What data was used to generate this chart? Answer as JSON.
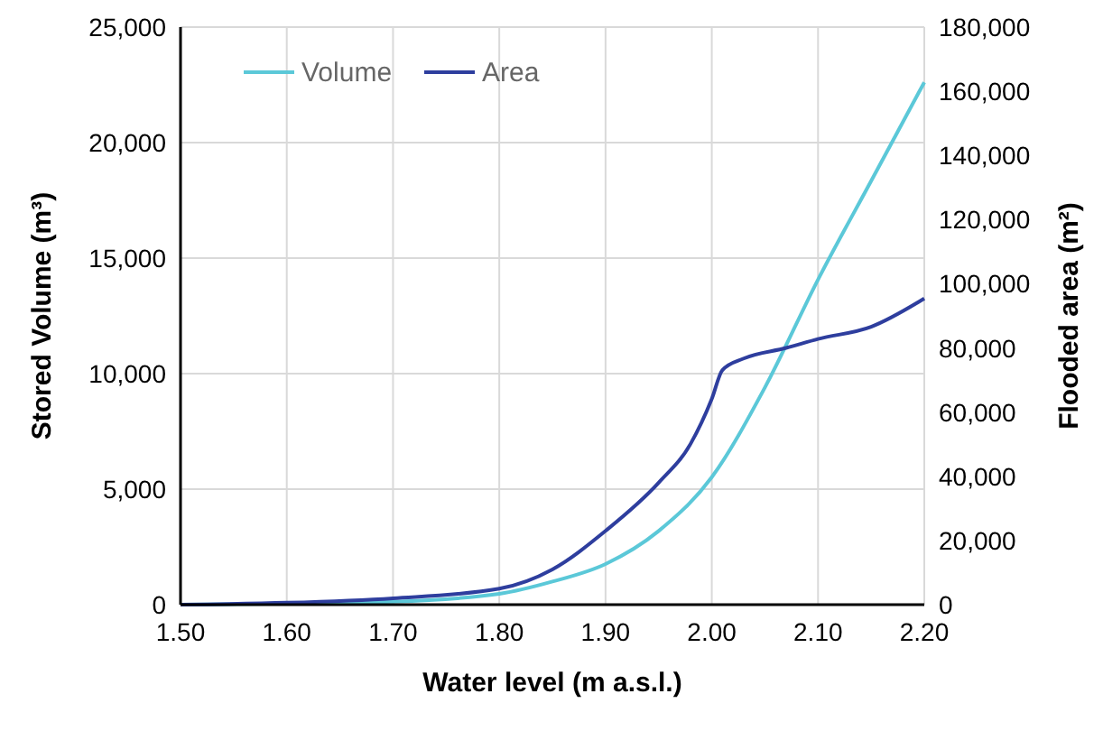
{
  "chart_data": {
    "type": "line",
    "xlabel": "Water level (m a.s.l.)",
    "ylabel": "Stored Volume (m³)",
    "y2label": "Flooded area (m²)",
    "xlim": [
      1.5,
      2.2
    ],
    "xticks": [
      {
        "value": 1.5,
        "label": "1.50"
      },
      {
        "value": 1.6,
        "label": "1.60"
      },
      {
        "value": 1.7,
        "label": "1.70"
      },
      {
        "value": 1.8,
        "label": "1.80"
      },
      {
        "value": 1.9,
        "label": "1.90"
      },
      {
        "value": 2.0,
        "label": "2.00"
      },
      {
        "value": 2.1,
        "label": "2.10"
      },
      {
        "value": 2.2,
        "label": "2.20"
      }
    ],
    "ylim": [
      0,
      25000
    ],
    "yticks": [
      {
        "value": 0,
        "label": "0"
      },
      {
        "value": 5000,
        "label": "5,000"
      },
      {
        "value": 10000,
        "label": "10,000"
      },
      {
        "value": 15000,
        "label": "15,000"
      },
      {
        "value": 20000,
        "label": "20,000"
      },
      {
        "value": 25000,
        "label": "25,000"
      }
    ],
    "y2lim": [
      0,
      180000
    ],
    "y2ticks": [
      {
        "value": 0,
        "label": "0"
      },
      {
        "value": 20000,
        "label": "20,000"
      },
      {
        "value": 40000,
        "label": "40,000"
      },
      {
        "value": 60000,
        "label": "60,000"
      },
      {
        "value": 80000,
        "label": "80,000"
      },
      {
        "value": 100000,
        "label": "100,000"
      },
      {
        "value": 120000,
        "label": "120,000"
      },
      {
        "value": 140000,
        "label": "140,000"
      },
      {
        "value": 160000,
        "label": "160,000"
      },
      {
        "value": 180000,
        "label": "180,000"
      }
    ],
    "grid": true,
    "legend": "top left",
    "line_style": "solid",
    "series": [
      {
        "name": "Volume",
        "color": "#5bc8d8",
        "x": [
          1.5,
          1.6,
          1.7,
          1.8,
          1.85,
          1.9,
          1.95,
          2.0,
          2.05,
          2.1,
          2.15,
          2.2
        ],
        "values": [
          0,
          50,
          130,
          470,
          1000,
          1760,
          3190,
          5520,
          9400,
          14070,
          18340,
          22610
        ]
      },
      {
        "name": "Area",
        "color": "#2e3e9e",
        "axis": "y2",
        "x": [
          1.5,
          1.6,
          1.7,
          1.8,
          1.85,
          1.9,
          1.95,
          1.98,
          2.0,
          2.01,
          2.03,
          2.07,
          2.1,
          2.15,
          2.2
        ],
        "values": [
          0,
          600,
          2000,
          5000,
          11000,
          23000,
          38000,
          50100,
          64100,
          73100,
          76700,
          80000,
          82800,
          86600,
          95400
        ]
      }
    ]
  }
}
